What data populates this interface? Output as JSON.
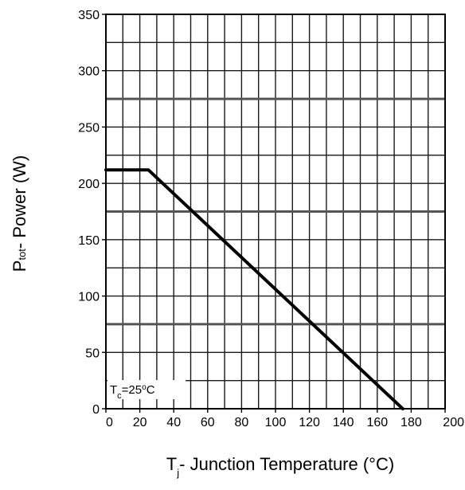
{
  "chart_data": {
    "type": "line",
    "xlabel": {
      "symbol": "T",
      "subscript": "j",
      "text": "- Junction Temperature (°C)"
    },
    "ylabel": {
      "symbol": "P",
      "subscript": "tot",
      "text": "- Power (W)"
    },
    "xlim": [
      0,
      200
    ],
    "ylim": [
      0,
      350
    ],
    "x_ticks": [
      0,
      20,
      40,
      60,
      80,
      100,
      120,
      140,
      160,
      180,
      200
    ],
    "x_tick_labels": [
      "0",
      "20",
      "40",
      "60",
      "80",
      "100",
      "120",
      "140",
      "160",
      "180",
      "200"
    ],
    "y_ticks": [
      0,
      50,
      100,
      150,
      200,
      250,
      300,
      350
    ],
    "y_tick_labels": [
      "0",
      "50",
      "100",
      "150",
      "200",
      "250",
      "300",
      "350"
    ],
    "grid": true,
    "grid_x_minor_step": 10,
    "grid_y_minor_step": 25,
    "series": [
      {
        "x": [
          0,
          25,
          175
        ],
        "y": [
          212,
          212,
          0
        ],
        "color": "#000000"
      }
    ],
    "annotation": {
      "symbol": "T",
      "subscript": "c",
      "text": "=25",
      "superscript": "o",
      "unit": "C"
    }
  }
}
